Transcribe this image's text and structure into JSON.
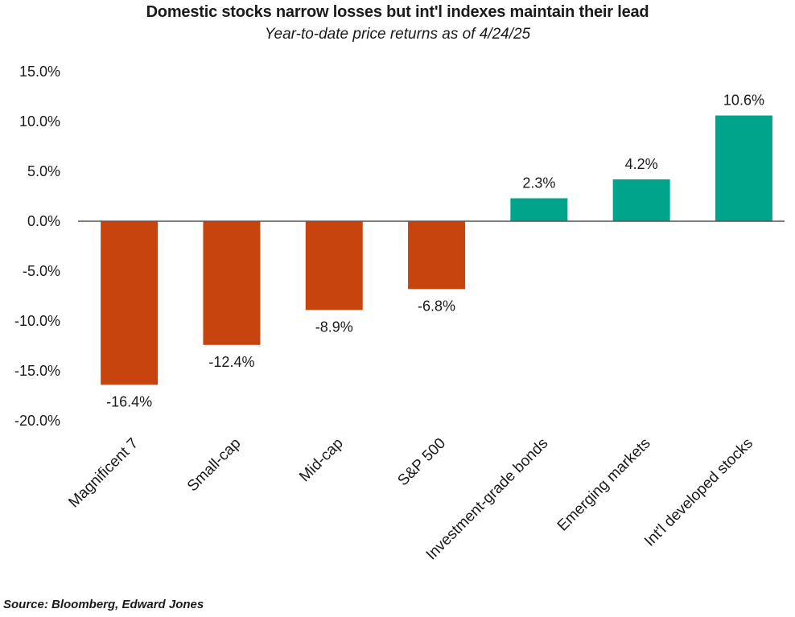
{
  "chart_data": {
    "type": "bar",
    "title": "Domestic stocks narrow losses but int'l indexes maintain their lead",
    "subtitle": "Year-to-date price returns as of 4/24/25",
    "categories": [
      "Magnificent 7",
      "Small-cap",
      "Mid-cap",
      "S&P 500",
      "Investment-grade bonds",
      "Emerging markets",
      "Int'l developed stocks"
    ],
    "values": [
      -16.4,
      -12.4,
      -8.9,
      -6.8,
      2.3,
      4.2,
      10.6
    ],
    "data_labels": [
      "-16.4%",
      "-12.4%",
      "-8.9%",
      "-6.8%",
      "2.3%",
      "4.2%",
      "10.6%"
    ],
    "yticks": [
      15,
      10,
      5,
      0,
      -5,
      -10,
      -15,
      -20
    ],
    "ytick_labels": [
      "15.0%",
      "10.0%",
      "5.0%",
      "0.0%",
      "-5.0%",
      "-10.0%",
      "-15.0%",
      "-20.0%"
    ],
    "ylim": [
      -20,
      15
    ],
    "xlabel": "",
    "ylabel": "",
    "grid": false,
    "colors": {
      "negative": "#c8440f",
      "positive": "#00a48a",
      "axis": "#555555"
    }
  },
  "footer": {
    "source": "Source: Bloomberg, Edward Jones"
  }
}
